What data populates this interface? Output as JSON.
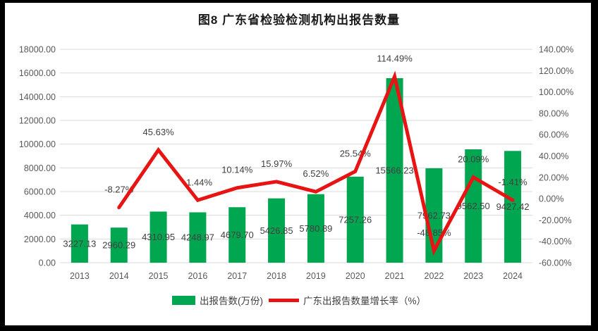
{
  "page_title": "图8 广东省检验检测机构出报告数量",
  "chart_data": {
    "type": "bar",
    "subtype": "bar-line-combo",
    "title": "图8 广东省检验检测机构出报告数量",
    "categories": [
      "2013",
      "2014",
      "2015",
      "2016",
      "2017",
      "2018",
      "2019",
      "2020",
      "2021",
      "2022",
      "2023",
      "2024"
    ],
    "series": [
      {
        "name": "出报告数(万份)",
        "chart_type": "bar",
        "axis": "left",
        "color": "#00A650",
        "values": [
          3227.13,
          2960.29,
          4310.95,
          4248.97,
          4679.7,
          5426.85,
          5780.89,
          7257.26,
          15566.23,
          7962.73,
          9562.5,
          9427.42
        ]
      },
      {
        "name": "广东出报告数量增长率（%）",
        "chart_type": "line",
        "axis": "right",
        "color": "#E81414",
        "values": [
          null,
          -8.27,
          45.63,
          -1.44,
          10.14,
          15.97,
          6.52,
          25.54,
          114.49,
          -48.85,
          20.09,
          -1.41
        ]
      }
    ],
    "left_axis": {
      "min": 0,
      "max": 18000,
      "step": 2000,
      "decimals": 2,
      "suffix": ""
    },
    "right_axis": {
      "min": -60,
      "max": 140,
      "step": 20,
      "decimals": 2,
      "suffix": "%"
    },
    "grid": true,
    "legend_position": "bottom",
    "data_labels": true
  },
  "legend": {
    "bar_label": "出报告数(万份)",
    "line_label": "广东出报告数量增长率（%）"
  },
  "colors": {
    "bar": "#00A650",
    "line": "#E81414",
    "grid": "#D9D9D9",
    "axis_text": "#595959",
    "data_label": "#404040",
    "title": "#1A1A1A",
    "background": "#FFFFFF",
    "frame": "#000000"
  }
}
